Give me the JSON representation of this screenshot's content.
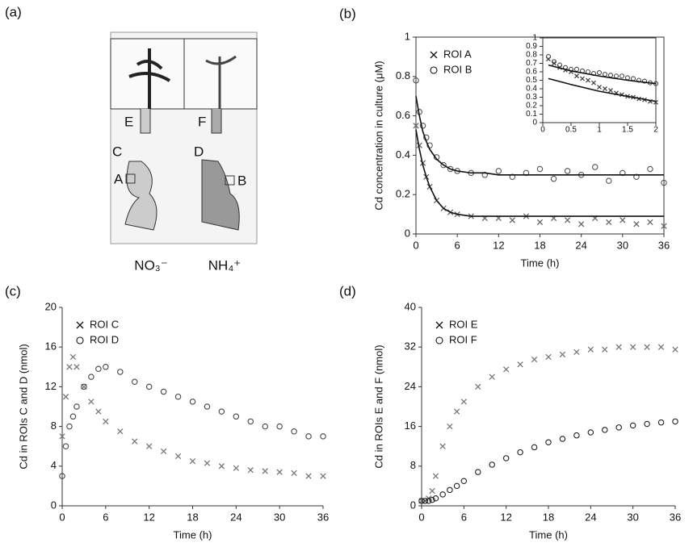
{
  "image_panel": {
    "panel_label": "(a)",
    "labels": [
      "E",
      "F",
      "C",
      "D",
      "A",
      "B"
    ],
    "left_caption": "NO₃⁻",
    "right_caption": "NH₄⁺"
  },
  "chart_data": [
    {
      "type": "scatter",
      "panel_label": "(b)",
      "x_label": "Time (h)",
      "y_label": "Cd concentration in culture (μM)",
      "x": [
        0,
        0.5,
        1,
        1.5,
        2,
        3,
        4,
        5,
        6,
        8,
        10,
        12,
        14,
        16,
        18,
        20,
        22,
        24,
        26,
        28,
        30,
        32,
        34,
        36
      ],
      "series": [
        {
          "name": "ROI A",
          "marker": "x",
          "color": "#666666",
          "values": [
            0.55,
            0.45,
            0.36,
            0.29,
            0.24,
            0.17,
            0.13,
            0.11,
            0.1,
            0.09,
            0.08,
            0.08,
            0.07,
            0.09,
            0.06,
            0.08,
            0.07,
            0.05,
            0.08,
            0.06,
            0.07,
            0.05,
            0.06,
            0.04
          ],
          "fit": [
            0.53,
            0.43,
            0.35,
            0.29,
            0.24,
            0.17,
            0.13,
            0.11,
            0.1,
            0.09,
            0.09,
            0.09,
            0.09,
            0.09,
            0.09,
            0.09,
            0.09,
            0.09,
            0.09,
            0.09,
            0.09,
            0.09,
            0.09,
            0.09
          ]
        },
        {
          "name": "ROI B",
          "marker": "o",
          "color": "#555555",
          "values": [
            0.78,
            0.62,
            0.55,
            0.49,
            0.45,
            0.39,
            0.35,
            0.33,
            0.32,
            0.31,
            0.3,
            0.32,
            0.29,
            0.31,
            0.33,
            0.28,
            0.32,
            0.3,
            0.34,
            0.27,
            0.31,
            0.29,
            0.33,
            0.26
          ],
          "fit": [
            0.7,
            0.6,
            0.52,
            0.47,
            0.43,
            0.38,
            0.35,
            0.33,
            0.32,
            0.31,
            0.31,
            0.3,
            0.3,
            0.3,
            0.3,
            0.3,
            0.3,
            0.3,
            0.3,
            0.3,
            0.3,
            0.3,
            0.3,
            0.3
          ]
        }
      ],
      "xlim": [
        0,
        36
      ],
      "xticks": [
        0,
        6,
        12,
        18,
        24,
        30,
        36
      ],
      "ylim": [
        0,
        1
      ],
      "yticks": [
        0,
        0.2,
        0.4,
        0.6,
        0.8,
        1
      ],
      "legend": "upper left"
    },
    {
      "type": "scatter",
      "x": [
        0.1,
        0.2,
        0.3,
        0.4,
        0.5,
        0.6,
        0.7,
        0.8,
        0.9,
        1,
        1.1,
        1.2,
        1.3,
        1.4,
        1.5,
        1.6,
        1.7,
        1.8,
        1.9,
        2
      ],
      "fit_x": [
        0.1,
        0.5,
        1,
        1.5,
        2
      ],
      "series": [
        {
          "marker": "x",
          "color": "#444444",
          "values": [
            0.75,
            0.7,
            0.65,
            0.62,
            0.6,
            0.55,
            0.52,
            0.5,
            0.47,
            0.42,
            0.4,
            0.38,
            0.35,
            0.33,
            0.31,
            0.3,
            0.28,
            0.27,
            0.25,
            0.24
          ],
          "fit": [
            0.52,
            0.45,
            0.37,
            0.31,
            0.25
          ]
        },
        {
          "marker": "o",
          "color": "#444444",
          "values": [
            0.78,
            0.72,
            0.68,
            0.65,
            0.63,
            0.63,
            0.61,
            0.6,
            0.58,
            0.59,
            0.57,
            0.56,
            0.55,
            0.55,
            0.53,
            0.52,
            0.5,
            0.49,
            0.47,
            0.46
          ],
          "fit": [
            0.68,
            0.61,
            0.55,
            0.5,
            0.46
          ]
        }
      ],
      "xlim": [
        0,
        2
      ],
      "xticks": [
        0,
        0.5,
        1,
        1.5,
        2
      ],
      "ylim": [
        0,
        1
      ],
      "yticks": [
        0,
        0.1,
        0.2,
        0.3,
        0.4,
        0.5,
        0.6,
        0.7,
        0.8,
        0.9,
        1
      ]
    },
    {
      "type": "scatter",
      "panel_label": "(c)",
      "x_label": "Time (h)",
      "y_label": "Cd in ROIs C and D (nmol)",
      "x": [
        0,
        0.5,
        1,
        1.5,
        2,
        3,
        4,
        5,
        6,
        8,
        10,
        12,
        14,
        16,
        18,
        20,
        22,
        24,
        26,
        28,
        30,
        32,
        34,
        36
      ],
      "series": [
        {
          "name": "ROI C",
          "marker": "x",
          "color": "#777777",
          "values": [
            7,
            11,
            14,
            15,
            14,
            12,
            10.5,
            9.5,
            8.5,
            7.5,
            6.5,
            6,
            5.5,
            5,
            4.5,
            4.3,
            4,
            3.8,
            3.6,
            3.5,
            3.4,
            3.3,
            3,
            3
          ]
        },
        {
          "name": "ROI D",
          "marker": "o",
          "color": "#444444",
          "values": [
            3,
            6,
            8,
            9,
            10,
            12,
            13,
            13.8,
            14,
            13.5,
            12.5,
            12,
            11.5,
            11,
            10.5,
            10,
            9.5,
            9,
            8.5,
            8,
            8,
            7.5,
            7,
            7
          ]
        }
      ],
      "xlim": [
        0,
        36
      ],
      "xticks": [
        0,
        6,
        12,
        18,
        24,
        30,
        36
      ],
      "ylim": [
        0,
        20
      ],
      "yticks": [
        0,
        4,
        8,
        12,
        16,
        20
      ],
      "legend": "upper left"
    },
    {
      "type": "scatter",
      "panel_label": "(d)",
      "x_label": "Time (h)",
      "y_label": "Cd in ROIs E and F (nmol)",
      "x": [
        0,
        0.5,
        1,
        1.5,
        2,
        3,
        4,
        5,
        6,
        8,
        10,
        12,
        14,
        16,
        18,
        20,
        22,
        24,
        26,
        28,
        30,
        32,
        34,
        36
      ],
      "series": [
        {
          "name": "ROI E",
          "marker": "x",
          "color": "#777777",
          "values": [
            1,
            1,
            1.5,
            3,
            6,
            12,
            16,
            19,
            21,
            24,
            26,
            27.5,
            28.5,
            29.5,
            30,
            30.5,
            31,
            31.5,
            31.5,
            32,
            32,
            32,
            32,
            31.5
          ]
        },
        {
          "name": "ROI F",
          "marker": "o",
          "color": "#222222",
          "values": [
            1,
            1,
            1,
            1.2,
            1.5,
            2.3,
            3.2,
            4,
            5,
            6.8,
            8.3,
            9.6,
            10.8,
            11.8,
            12.8,
            13.5,
            14.2,
            14.8,
            15.3,
            15.8,
            16.2,
            16.5,
            16.8,
            17
          ]
        }
      ],
      "xlim": [
        0,
        36
      ],
      "xticks": [
        0,
        6,
        12,
        18,
        24,
        30,
        36
      ],
      "ylim": [
        0,
        40
      ],
      "yticks": [
        0,
        8,
        16,
        24,
        32,
        40
      ],
      "legend": "upper left"
    }
  ]
}
